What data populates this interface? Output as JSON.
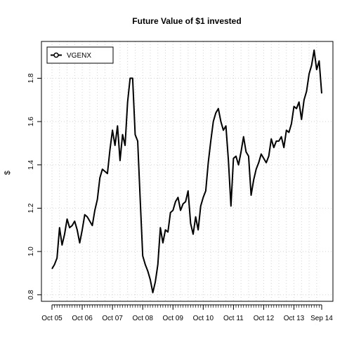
{
  "chart_data": {
    "type": "line",
    "title": "Future Value of $1 invested",
    "xlabel": "",
    "ylabel": "$",
    "ylim": [
      0.77,
      1.97
    ],
    "y_ticks": [
      0.8,
      1.0,
      1.2,
      1.4,
      1.6,
      1.8
    ],
    "y_tick_labels": [
      "0.8",
      "1.0",
      "1.2",
      "1.4",
      "1.6",
      "1.8"
    ],
    "x_tick_labels": [
      "Oct 05",
      "Oct 06",
      "Oct 07",
      "Oct 08",
      "Oct 09",
      "Oct 10",
      "Oct 11",
      "Oct 12",
      "Oct 13",
      "Sep 14"
    ],
    "x_major_ticks": [
      "2005-10",
      "2006-10",
      "2007-10",
      "2008-10",
      "2009-10",
      "2010-10",
      "2011-10",
      "2012-10",
      "2013-10",
      "2014-09"
    ],
    "grid": true,
    "legend_position": "top-left",
    "line_color": "#000000",
    "x": [
      "2005-10",
      "2005-11",
      "2005-12",
      "2006-01",
      "2006-02",
      "2006-03",
      "2006-04",
      "2006-05",
      "2006-06",
      "2006-07",
      "2006-08",
      "2006-09",
      "2006-10",
      "2006-11",
      "2006-12",
      "2007-01",
      "2007-02",
      "2007-03",
      "2007-04",
      "2007-05",
      "2007-06",
      "2007-07",
      "2007-08",
      "2007-09",
      "2007-10",
      "2007-11",
      "2007-12",
      "2008-01",
      "2008-02",
      "2008-03",
      "2008-04",
      "2008-05",
      "2008-06",
      "2008-07",
      "2008-08",
      "2008-09",
      "2008-10",
      "2008-11",
      "2008-12",
      "2009-01",
      "2009-02",
      "2009-03",
      "2009-04",
      "2009-05",
      "2009-06",
      "2009-07",
      "2009-08",
      "2009-09",
      "2009-10",
      "2009-11",
      "2009-12",
      "2010-01",
      "2010-02",
      "2010-03",
      "2010-04",
      "2010-05",
      "2010-06",
      "2010-07",
      "2010-08",
      "2010-09",
      "2010-10",
      "2010-11",
      "2010-12",
      "2011-01",
      "2011-02",
      "2011-03",
      "2011-04",
      "2011-05",
      "2011-06",
      "2011-07",
      "2011-08",
      "2011-09",
      "2011-10",
      "2011-11",
      "2011-12",
      "2012-01",
      "2012-02",
      "2012-03",
      "2012-04",
      "2012-05",
      "2012-06",
      "2012-07",
      "2012-08",
      "2012-09",
      "2012-10",
      "2012-11",
      "2012-12",
      "2013-01",
      "2013-02",
      "2013-03",
      "2013-04",
      "2013-05",
      "2013-06",
      "2013-07",
      "2013-08",
      "2013-09",
      "2013-10",
      "2013-11",
      "2013-12",
      "2014-01",
      "2014-02",
      "2014-03",
      "2014-04",
      "2014-05",
      "2014-06",
      "2014-07",
      "2014-08",
      "2014-09"
    ],
    "series": [
      {
        "name": "VGENX",
        "values": [
          0.92,
          0.94,
          0.97,
          1.11,
          1.03,
          1.08,
          1.15,
          1.11,
          1.12,
          1.14,
          1.1,
          1.04,
          1.1,
          1.17,
          1.16,
          1.14,
          1.12,
          1.19,
          1.24,
          1.34,
          1.38,
          1.37,
          1.36,
          1.47,
          1.56,
          1.49,
          1.58,
          1.42,
          1.54,
          1.49,
          1.69,
          1.8,
          1.8,
          1.54,
          1.51,
          1.24,
          0.98,
          0.94,
          0.91,
          0.87,
          0.81,
          0.86,
          0.94,
          1.11,
          1.04,
          1.1,
          1.09,
          1.18,
          1.19,
          1.23,
          1.25,
          1.19,
          1.22,
          1.23,
          1.28,
          1.13,
          1.08,
          1.16,
          1.1,
          1.21,
          1.25,
          1.28,
          1.41,
          1.51,
          1.6,
          1.64,
          1.66,
          1.6,
          1.56,
          1.58,
          1.42,
          1.21,
          1.43,
          1.44,
          1.4,
          1.46,
          1.53,
          1.46,
          1.44,
          1.26,
          1.33,
          1.38,
          1.41,
          1.45,
          1.43,
          1.41,
          1.44,
          1.52,
          1.48,
          1.51,
          1.51,
          1.53,
          1.48,
          1.56,
          1.55,
          1.59,
          1.67,
          1.66,
          1.69,
          1.61,
          1.7,
          1.74,
          1.82,
          1.86,
          1.93,
          1.84,
          1.88,
          1.73
        ]
      }
    ]
  }
}
